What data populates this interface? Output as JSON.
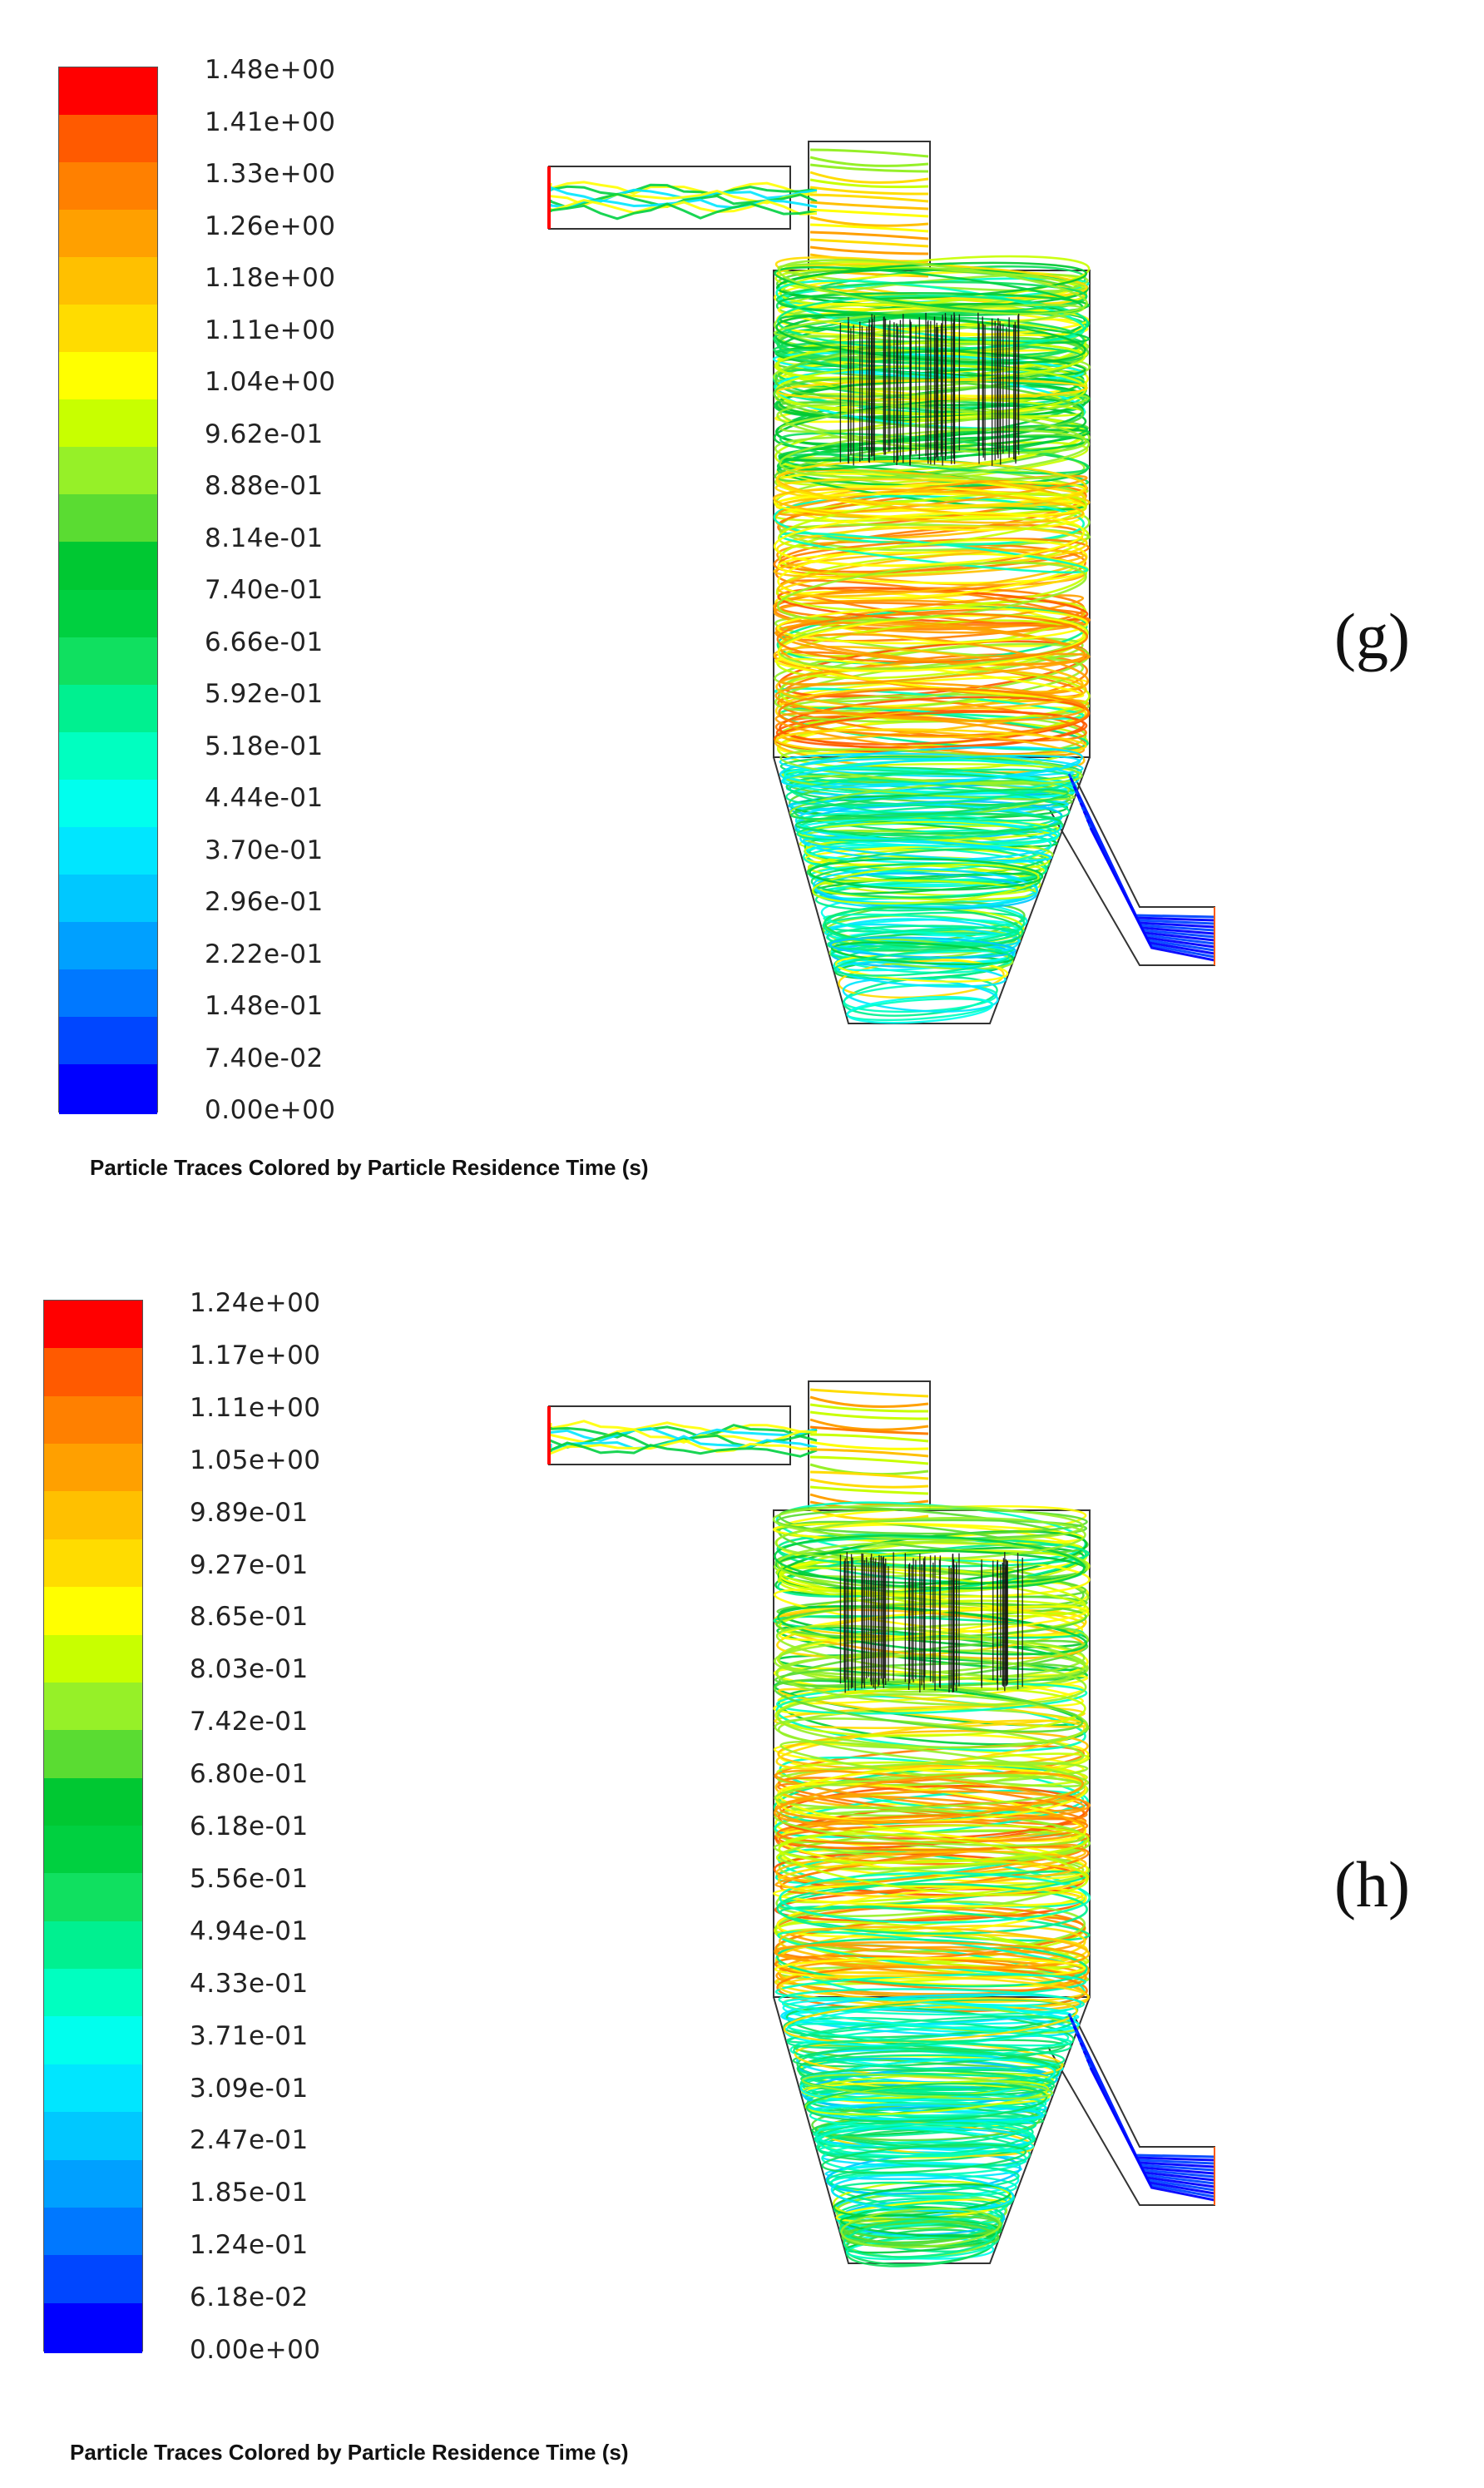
{
  "palette": [
    "#0000ff",
    "#0046ff",
    "#0078ff",
    "#00a0ff",
    "#00c8ff",
    "#00e6ff",
    "#00ffee",
    "#00ffc0",
    "#00f090",
    "#10e060",
    "#00d040",
    "#00c832",
    "#5adc32",
    "#96f028",
    "#c8ff00",
    "#ffff00",
    "#ffdc00",
    "#ffc000",
    "#ffa000",
    "#ff8000",
    "#ff5a00",
    "#ff0000"
  ],
  "panels": [
    {
      "id": "g",
      "label": "(g)",
      "caption": "Particle Traces Colored by Particle Residence Time (s)",
      "ticks": [
        "1.48e+00",
        "1.41e+00",
        "1.33e+00",
        "1.26e+00",
        "1.18e+00",
        "1.11e+00",
        "1.04e+00",
        "9.62e-01",
        "8.88e-01",
        "8.14e-01",
        "7.40e-01",
        "6.66e-01",
        "5.92e-01",
        "5.18e-01",
        "4.44e-01",
        "3.70e-01",
        "2.96e-01",
        "2.22e-01",
        "1.48e-01",
        "7.40e-02",
        "0.00e+00"
      ],
      "seed": 7
    },
    {
      "id": "h",
      "label": "(h)",
      "caption": "Particle Traces Colored by Particle Residence Time (s)",
      "ticks": [
        "1.24e+00",
        "1.17e+00",
        "1.11e+00",
        "1.05e+00",
        "9.89e-01",
        "9.27e-01",
        "8.65e-01",
        "8.03e-01",
        "7.42e-01",
        "6.80e-01",
        "6.18e-01",
        "5.56e-01",
        "4.94e-01",
        "4.33e-01",
        "3.71e-01",
        "3.09e-01",
        "2.47e-01",
        "1.85e-01",
        "1.24e-01",
        "6.18e-02",
        "0.00e+00"
      ],
      "seed": 13
    }
  ]
}
